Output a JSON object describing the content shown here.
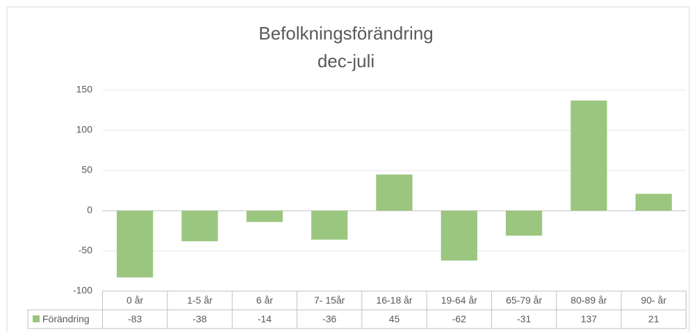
{
  "chart_data": {
    "type": "bar",
    "title": "Befolkningsförändring",
    "subtitle": "dec-juli",
    "categories": [
      "0 år",
      "1-5 år",
      "6 år",
      "7- 15år",
      "16-18 år",
      "19-64 år",
      "65-79 år",
      "80-89 år",
      "90- år"
    ],
    "series": [
      {
        "name": "Förändring",
        "color": "#9bc67f",
        "values": [
          -83,
          -38,
          -14,
          -36,
          45,
          -62,
          -31,
          137,
          21
        ]
      }
    ],
    "ylim": [
      -100,
      150
    ],
    "yticks": [
      -100,
      -50,
      0,
      50,
      100,
      150
    ],
    "grid": true
  }
}
